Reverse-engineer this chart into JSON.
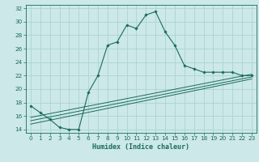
{
  "title": "",
  "xlabel": "Humidex (Indice chaleur)",
  "xlim": [
    -0.5,
    23.5
  ],
  "ylim": [
    13.5,
    32.5
  ],
  "xticks": [
    0,
    1,
    2,
    3,
    4,
    5,
    6,
    7,
    8,
    9,
    10,
    11,
    12,
    13,
    14,
    15,
    16,
    17,
    18,
    19,
    20,
    21,
    22,
    23
  ],
  "yticks": [
    14,
    16,
    18,
    20,
    22,
    24,
    26,
    28,
    30,
    32
  ],
  "background_color": "#cce8e8",
  "line_color": "#1a6b5a",
  "grid_color": "#aad4d4",
  "curve1_x": [
    0,
    1,
    2,
    3,
    4,
    5,
    6,
    7,
    8,
    9,
    10,
    11,
    12,
    13,
    14,
    15,
    16,
    17,
    18,
    19,
    20,
    21,
    22,
    23
  ],
  "curve1_y": [
    17.5,
    16.5,
    15.5,
    14.3,
    14.0,
    14.0,
    19.5,
    22.0,
    26.5,
    27.0,
    29.5,
    29.0,
    31.0,
    31.5,
    28.5,
    26.5,
    23.5,
    23.0,
    22.5,
    22.5,
    22.5,
    22.5,
    22.0,
    22.0
  ],
  "line1_x": [
    0,
    23
  ],
  "line1_y": [
    14.8,
    21.5
  ],
  "line2_x": [
    0,
    23
  ],
  "line2_y": [
    15.3,
    21.8
  ],
  "line3_x": [
    0,
    23
  ],
  "line3_y": [
    15.8,
    22.2
  ]
}
